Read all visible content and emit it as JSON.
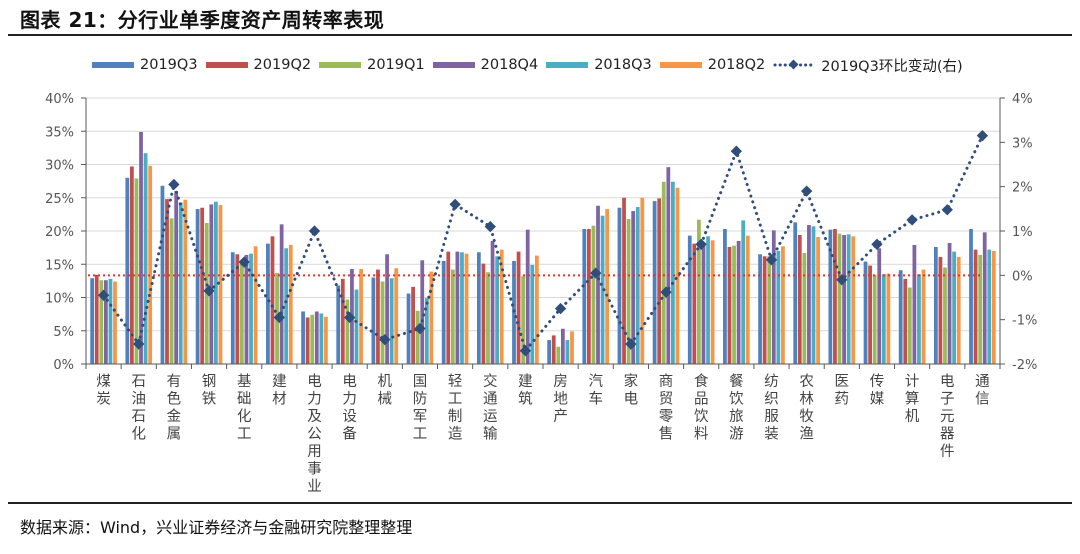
{
  "header": {
    "title": "图表 21：分行业单季度资产周转率表现"
  },
  "footer": {
    "source": "数据来源：Wind，兴业证券经济与金融研究院整理整理"
  },
  "colors": {
    "2019Q3": "#4f81bd",
    "2019Q2": "#c0504d",
    "2019Q1": "#9bbb59",
    "2018Q4": "#8064a2",
    "2018Q3": "#4bacc6",
    "2018Q2": "#f79646",
    "line": "#2f4e79",
    "zero_line": "#e8322b",
    "grid": "#d9d9d9",
    "axis": "#595959"
  },
  "chart_data": {
    "type": "bar",
    "title": "图表 21：分行业单季度资产周转率表现",
    "categories": [
      "煤炭",
      "石油石化",
      "有色金属",
      "钢铁",
      "基础化工",
      "建材",
      "电力及公用事业",
      "电力设备",
      "机械",
      "国防军工",
      "轻工制造",
      "交通运输",
      "建筑",
      "房地产",
      "汽车",
      "家电",
      "商贸零售",
      "食品饮料",
      "餐饮旅游",
      "纺织服装",
      "农林牧渔",
      "医药",
      "传媒",
      "计算机",
      "电子元器件",
      "通信"
    ],
    "series": [
      {
        "name": "2019Q3",
        "axis": "left",
        "values": [
          12.9,
          28.0,
          26.8,
          23.3,
          16.8,
          18.1,
          7.9,
          11.8,
          13.0,
          10.6,
          15.5,
          16.8,
          15.5,
          3.6,
          20.3,
          23.5,
          24.5,
          19.3,
          20.3,
          16.5,
          21.3,
          20.2,
          15.4,
          14.1,
          17.6,
          20.3
        ]
      },
      {
        "name": "2019Q2",
        "axis": "left",
        "values": [
          13.4,
          29.7,
          24.8,
          23.5,
          16.5,
          19.2,
          7.0,
          12.8,
          14.2,
          11.6,
          16.9,
          15.1,
          16.9,
          4.3,
          20.3,
          25.0,
          24.9,
          18.1,
          17.6,
          16.2,
          19.4,
          20.3,
          14.8,
          12.8,
          16.1,
          17.2
        ]
      },
      {
        "name": "2019Q1",
        "axis": "left",
        "values": [
          12.6,
          27.9,
          21.9,
          21.2,
          15.3,
          13.7,
          7.4,
          9.7,
          12.4,
          8.0,
          14.2,
          13.8,
          13.2,
          2.6,
          20.8,
          21.8,
          27.4,
          21.7,
          17.8,
          16.2,
          16.7,
          19.6,
          13.4,
          11.5,
          14.5,
          16.4
        ]
      },
      {
        "name": "2018Q4",
        "axis": "left",
        "values": [
          12.6,
          34.9,
          26.0,
          24.0,
          16.4,
          21.0,
          7.9,
          14.3,
          16.5,
          15.6,
          16.9,
          18.5,
          20.2,
          5.3,
          23.8,
          23.0,
          29.6,
          18.0,
          18.5,
          20.1,
          20.9,
          19.4,
          17.4,
          17.9,
          18.2,
          19.8
        ]
      },
      {
        "name": "2018Q3",
        "axis": "left",
        "values": [
          12.8,
          31.7,
          24.3,
          24.4,
          16.6,
          17.4,
          7.6,
          11.2,
          12.9,
          9.9,
          16.8,
          16.2,
          14.9,
          3.6,
          22.3,
          23.6,
          27.4,
          19.2,
          21.6,
          17.0,
          20.7,
          19.5,
          13.5,
          13.5,
          16.9,
          17.2
        ]
      },
      {
        "name": "2018Q2",
        "axis": "left",
        "values": [
          12.4,
          29.8,
          24.7,
          23.9,
          17.7,
          17.9,
          7.1,
          14.3,
          14.4,
          13.9,
          16.6,
          17.2,
          16.3,
          4.9,
          23.3,
          25.0,
          26.5,
          18.6,
          19.3,
          17.7,
          19.1,
          19.2,
          13.6,
          14.2,
          16.1,
          17.0
        ]
      },
      {
        "name": "2019Q3环比变动(右)",
        "axis": "right",
        "type": "line",
        "values": [
          -0.45,
          -1.55,
          2.05,
          -0.35,
          0.3,
          -0.95,
          1.0,
          -0.95,
          -1.45,
          -1.2,
          1.6,
          1.1,
          -1.7,
          -0.75,
          0.05,
          -1.55,
          -0.38,
          0.7,
          2.8,
          0.35,
          1.9,
          -0.1,
          0.7,
          1.25,
          1.48,
          3.15
        ]
      }
    ],
    "legend": [
      "2019Q3",
      "2019Q2",
      "2019Q1",
      "2018Q4",
      "2018Q3",
      "2018Q2",
      "2019Q3环比变动(右)"
    ],
    "legend_position": "top",
    "y_left": {
      "min": 0,
      "max": 40,
      "step": 5,
      "unit": "%",
      "ticks": [
        "0%",
        "5%",
        "10%",
        "15%",
        "20%",
        "25%",
        "30%",
        "35%",
        "40%"
      ]
    },
    "y_right": {
      "min": -2,
      "max": 4,
      "step": 1,
      "unit": "%",
      "ticks": [
        "-2%",
        "-1%",
        "0%",
        "1%",
        "2%",
        "3%",
        "4%"
      ]
    },
    "xlabel": "",
    "ylabel": "",
    "grid": true,
    "reference_line": {
      "axis": "right",
      "value": 0
    }
  }
}
